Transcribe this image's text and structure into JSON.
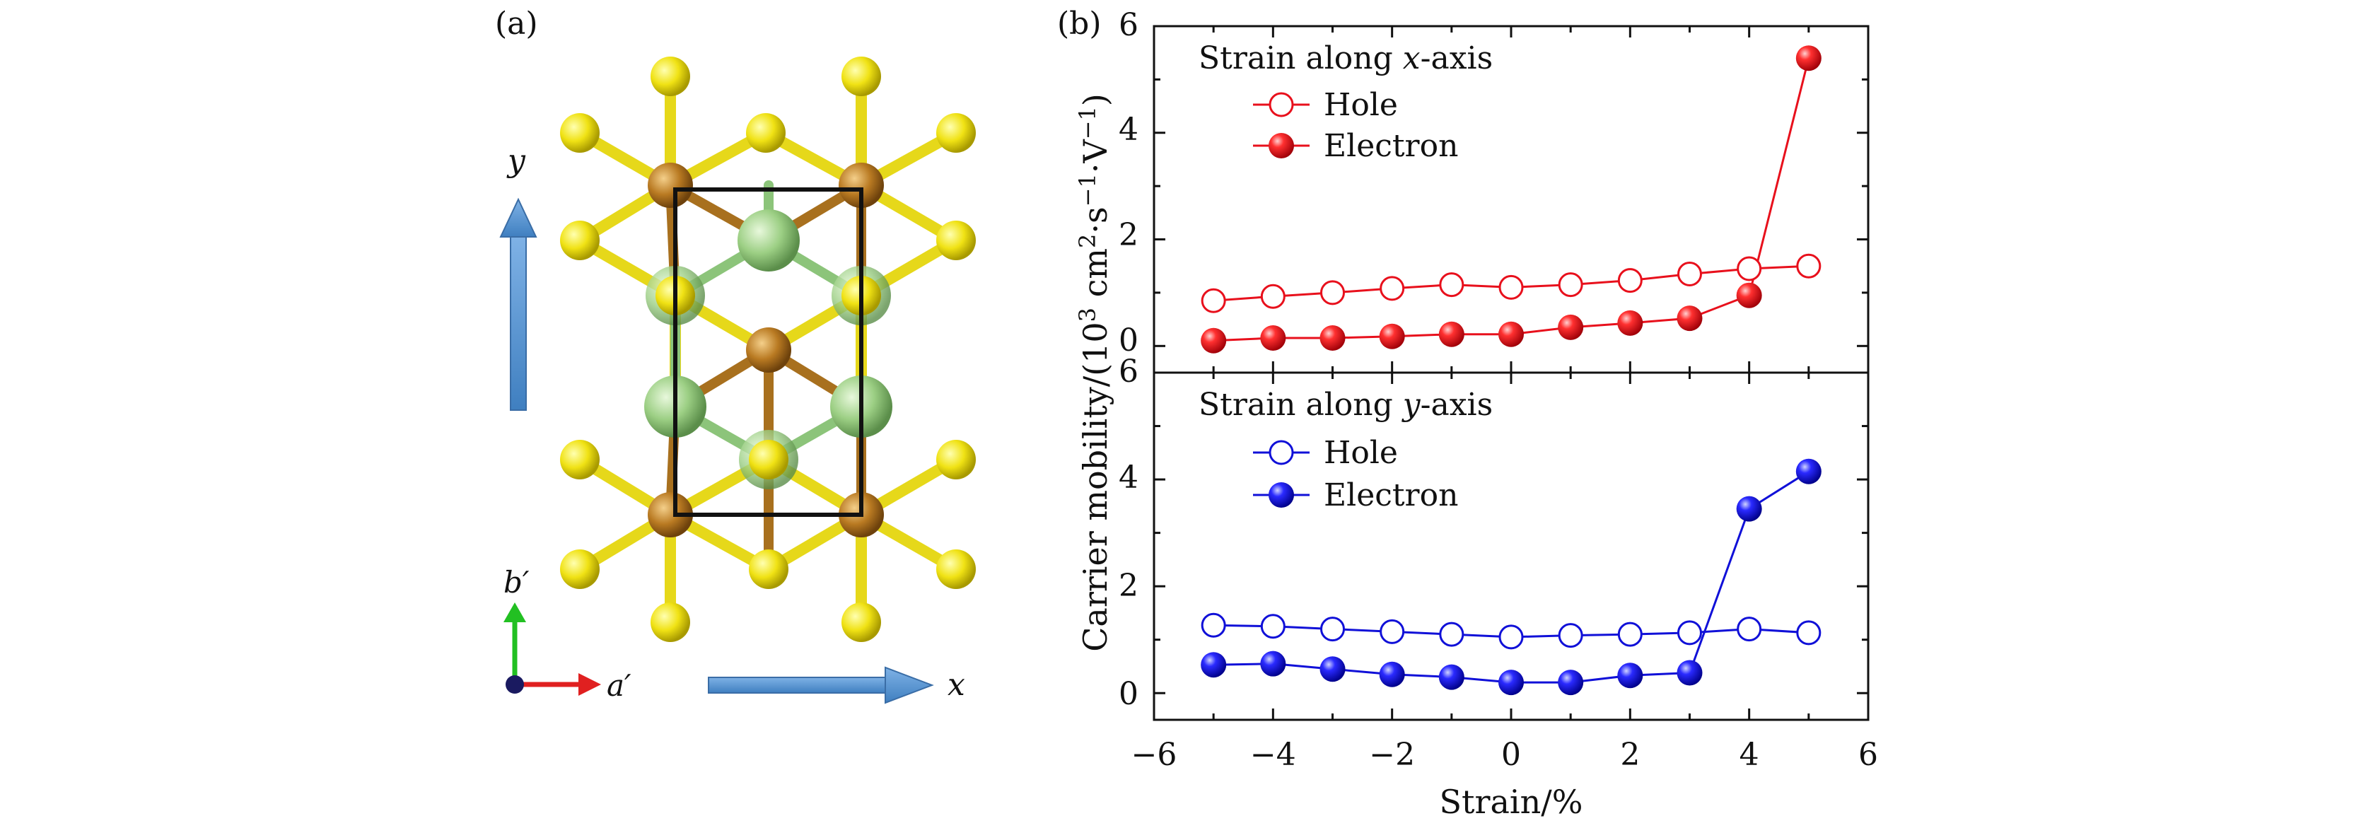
{
  "panel_a": {
    "label": "(a)",
    "y_arrow_label": "y",
    "x_arrow_label": "x",
    "b_axis_label": "b′",
    "a_axis_label": "a′"
  },
  "panel_b": {
    "label": "(b)"
  },
  "chart_data": [
    {
      "type": "line",
      "panel": "top",
      "title": "Strain along x-axis",
      "title_prefix": "Strain along ",
      "title_var": "x",
      "title_suffix": "-axis",
      "x": [
        -5,
        -4,
        -3,
        -2,
        -1,
        0,
        1,
        2,
        3,
        4,
        5
      ],
      "series": [
        {
          "name": "Hole",
          "marker": "open-circle",
          "color": "#e8101c",
          "values": [
            0.85,
            0.93,
            1.0,
            1.08,
            1.15,
            1.1,
            1.15,
            1.23,
            1.35,
            1.45,
            1.5
          ]
        },
        {
          "name": "Electron",
          "marker": "filled-sphere",
          "color": "#e8101c",
          "values": [
            0.1,
            0.15,
            0.15,
            0.18,
            0.22,
            0.22,
            0.35,
            0.43,
            0.52,
            0.95,
            5.4
          ]
        }
      ],
      "ylim": [
        -0.5,
        6
      ],
      "yticks": [
        0,
        2,
        4,
        6
      ],
      "legend": "top-left"
    },
    {
      "type": "line",
      "panel": "bottom",
      "title": "Strain along y-axis",
      "title_prefix": "Strain along ",
      "title_var": "y",
      "title_suffix": "-axis",
      "x": [
        -5,
        -4,
        -3,
        -2,
        -1,
        0,
        1,
        2,
        3,
        4,
        5
      ],
      "series": [
        {
          "name": "Hole",
          "marker": "open-circle",
          "color": "#1010d8",
          "values": [
            1.27,
            1.25,
            1.2,
            1.15,
            1.1,
            1.05,
            1.08,
            1.1,
            1.13,
            1.2,
            1.13
          ]
        },
        {
          "name": "Electron",
          "marker": "filled-sphere",
          "color": "#1010d8",
          "values": [
            0.53,
            0.55,
            0.45,
            0.35,
            0.3,
            0.2,
            0.2,
            0.33,
            0.38,
            3.45,
            4.15
          ]
        }
      ],
      "ylim": [
        -0.5,
        6
      ],
      "yticks": [
        0,
        2,
        4,
        6
      ],
      "legend": "top-left"
    }
  ],
  "axes": {
    "xlabel": "Strain/%",
    "ylabel_text": "Carrier mobility/(10",
    "ylabel_exp1": "3",
    "ylabel_unit1": " cm",
    "ylabel_exp2": "2",
    "ylabel_unit2": "·s",
    "ylabel_exp3": "−1",
    "ylabel_unit3": "·V",
    "ylabel_exp4": "−1",
    "ylabel_close": ")",
    "xlim": [
      -6,
      6
    ],
    "xticks": [
      -6,
      -4,
      -2,
      0,
      2,
      4,
      6
    ],
    "xtick_labels": [
      "−6",
      "−4",
      "−2",
      "0",
      "2",
      "4",
      "6"
    ]
  }
}
